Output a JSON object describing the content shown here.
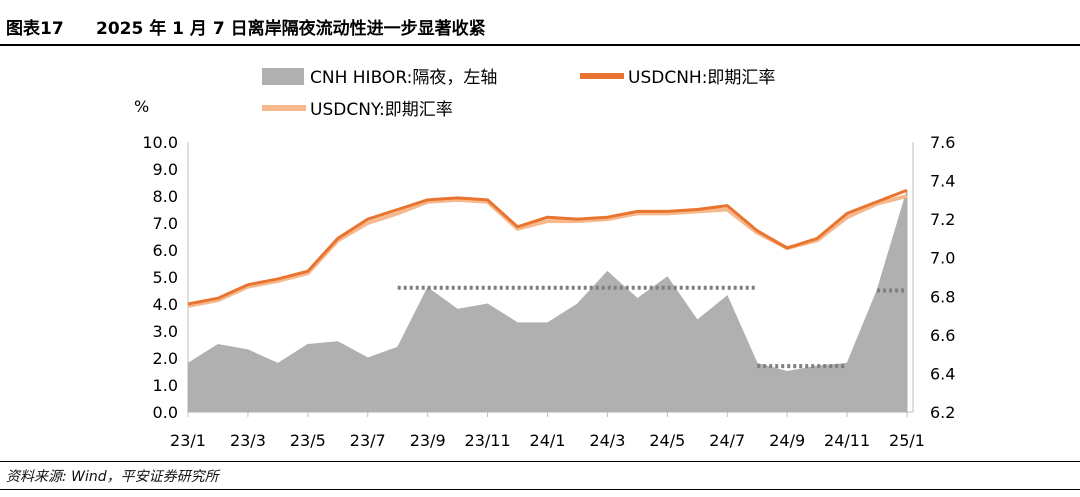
{
  "figure": {
    "number": "图表17",
    "title": "2025 年 1 月 7 日离岸隔夜流动性进一步显著收紧",
    "source": "资料来源: Wind，平安证券研究所"
  },
  "colors": {
    "hibor": "#b0b0b0",
    "usdcnh": "#e8742f",
    "usdcny": "#f6b98d",
    "dotted": "#7f7f7f"
  },
  "chart_data": {
    "type": "line",
    "left_axis_unit": "%",
    "left_ticks": [
      "10.0",
      "9.0",
      "8.0",
      "7.0",
      "6.0",
      "5.0",
      "4.0",
      "3.0",
      "2.0",
      "1.0",
      "0.0"
    ],
    "right_ticks": [
      "7.6",
      "7.4",
      "7.2",
      "7.0",
      "6.8",
      "6.6",
      "6.4",
      "6.2"
    ],
    "x_ticks": [
      "23/1",
      "23/3",
      "23/5",
      "23/7",
      "23/9",
      "23/11",
      "24/1",
      "24/3",
      "24/5",
      "24/7",
      "24/9",
      "24/11",
      "25/1"
    ],
    "ylim_left": [
      0,
      10
    ],
    "ylim_right": [
      6.2,
      7.6
    ],
    "series": [
      {
        "name": "CNH HIBOR:隔夜，左轴",
        "type": "area",
        "axis": "left",
        "x": [
          "23/1",
          "23/2",
          "23/3",
          "23/4",
          "23/5",
          "23/6",
          "23/7",
          "23/8",
          "23/9",
          "23/10",
          "23/11",
          "23/12",
          "24/1",
          "24/2",
          "24/3",
          "24/4",
          "24/5",
          "24/6",
          "24/7",
          "24/8",
          "24/9",
          "24/10",
          "24/11",
          "24/12",
          "25/1"
        ],
        "values": [
          1.8,
          2.5,
          2.3,
          1.8,
          2.5,
          2.6,
          2.0,
          2.4,
          4.6,
          3.8,
          4.0,
          3.3,
          3.3,
          4.0,
          5.2,
          4.2,
          5.0,
          3.4,
          4.3,
          1.8,
          1.5,
          1.7,
          1.8,
          4.5,
          8.2
        ]
      },
      {
        "name": "USDCNH:即期汇率",
        "type": "line",
        "axis": "right",
        "x": [
          "23/1",
          "23/2",
          "23/3",
          "23/4",
          "23/5",
          "23/6",
          "23/7",
          "23/8",
          "23/9",
          "23/10",
          "23/11",
          "23/12",
          "24/1",
          "24/2",
          "24/3",
          "24/4",
          "24/5",
          "24/6",
          "24/7",
          "24/8",
          "24/9",
          "24/10",
          "24/11",
          "24/12",
          "25/1"
        ],
        "values": [
          6.76,
          6.79,
          6.86,
          6.89,
          6.93,
          7.1,
          7.2,
          7.25,
          7.3,
          7.31,
          7.3,
          7.16,
          7.21,
          7.2,
          7.21,
          7.24,
          7.24,
          7.25,
          7.27,
          7.14,
          7.05,
          7.1,
          7.23,
          7.29,
          7.35
        ]
      },
      {
        "name": "USDCNY:即期汇率",
        "type": "line",
        "axis": "right",
        "x": [
          "23/1",
          "23/2",
          "23/3",
          "23/4",
          "23/5",
          "23/6",
          "23/7",
          "23/8",
          "23/9",
          "23/10",
          "23/11",
          "23/12",
          "24/1",
          "24/2",
          "24/3",
          "24/4",
          "24/5",
          "24/6",
          "24/7",
          "24/8",
          "24/9",
          "24/10",
          "24/11",
          "24/12",
          "25/1"
        ],
        "values": [
          6.75,
          6.78,
          6.85,
          6.88,
          6.92,
          7.09,
          7.18,
          7.23,
          7.29,
          7.3,
          7.29,
          7.15,
          7.19,
          7.19,
          7.2,
          7.23,
          7.23,
          7.24,
          7.25,
          7.13,
          7.05,
          7.09,
          7.21,
          7.28,
          7.32
        ]
      }
    ],
    "reference_levels": [
      {
        "from": "23/8",
        "to": "24/8",
        "value": 4.6
      },
      {
        "from": "24/8",
        "to": "24/11",
        "value": 1.7
      },
      {
        "from": "24/12",
        "to": "25/1",
        "value": 4.5
      }
    ]
  }
}
